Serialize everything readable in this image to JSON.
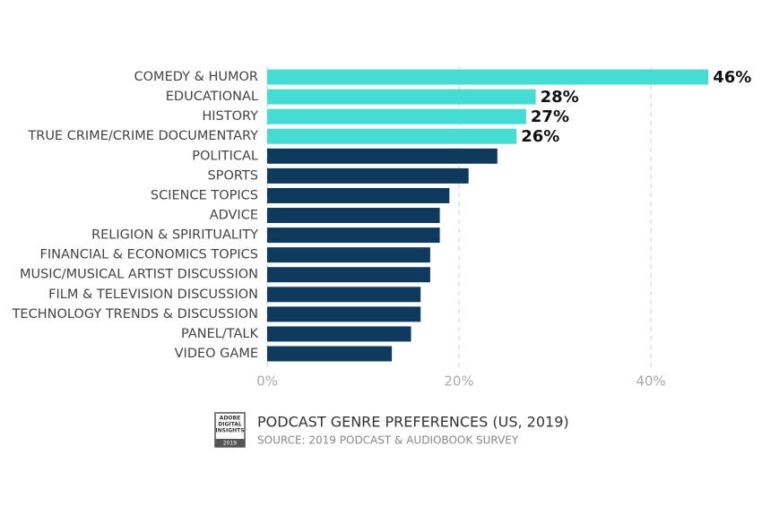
{
  "chart_data": {
    "type": "bar",
    "orientation": "horizontal",
    "title": "PODCAST GENRE PREFERENCES (US, 2019)",
    "subtitle": "SOURCE: 2019 PODCAST & AUDIOBOOK SURVEY",
    "logo": [
      "ADOBE",
      "DIGITAL",
      "INSIGHTS",
      "2019"
    ],
    "categories": [
      "COMEDY & HUMOR",
      "EDUCATIONAL",
      "HISTORY",
      "TRUE CRIME/CRIME DOCUMENTARY",
      "POLITICAL",
      "SPORTS",
      "SCIENCE TOPICS",
      "ADVICE",
      "RELIGION & SPIRITUALITY",
      "FINANCIAL & ECONOMICS TOPICS",
      "MUSIC/MUSICAL ARTIST DISCUSSION",
      "FILM & TELEVISION DISCUSSION",
      "TECHNOLOGY TRENDS & DISCUSSION",
      "PANEL/TALK",
      "VIDEO GAME"
    ],
    "values": [
      46,
      28,
      27,
      26,
      24,
      21,
      19,
      18,
      18,
      17,
      17,
      16,
      16,
      15,
      13
    ],
    "value_labels": [
      "46%",
      "28%",
      "27%",
      "26%",
      null,
      null,
      null,
      null,
      null,
      null,
      null,
      null,
      null,
      null,
      null
    ],
    "colors": [
      "#45dcd4",
      "#45dcd4",
      "#45dcd4",
      "#45dcd4",
      "#0f3a5d",
      "#0f3a5d",
      "#0f3a5d",
      "#0f3a5d",
      "#0f3a5d",
      "#0f3a5d",
      "#0f3a5d",
      "#0f3a5d",
      "#0f3a5d",
      "#0f3a5d",
      "#0f3a5d"
    ],
    "xlim": [
      0,
      50
    ],
    "xticks": [
      {
        "value": 0,
        "label": "0%"
      },
      {
        "value": 20,
        "label": "20%"
      },
      {
        "value": 40,
        "label": "40%"
      }
    ],
    "grid": true
  }
}
